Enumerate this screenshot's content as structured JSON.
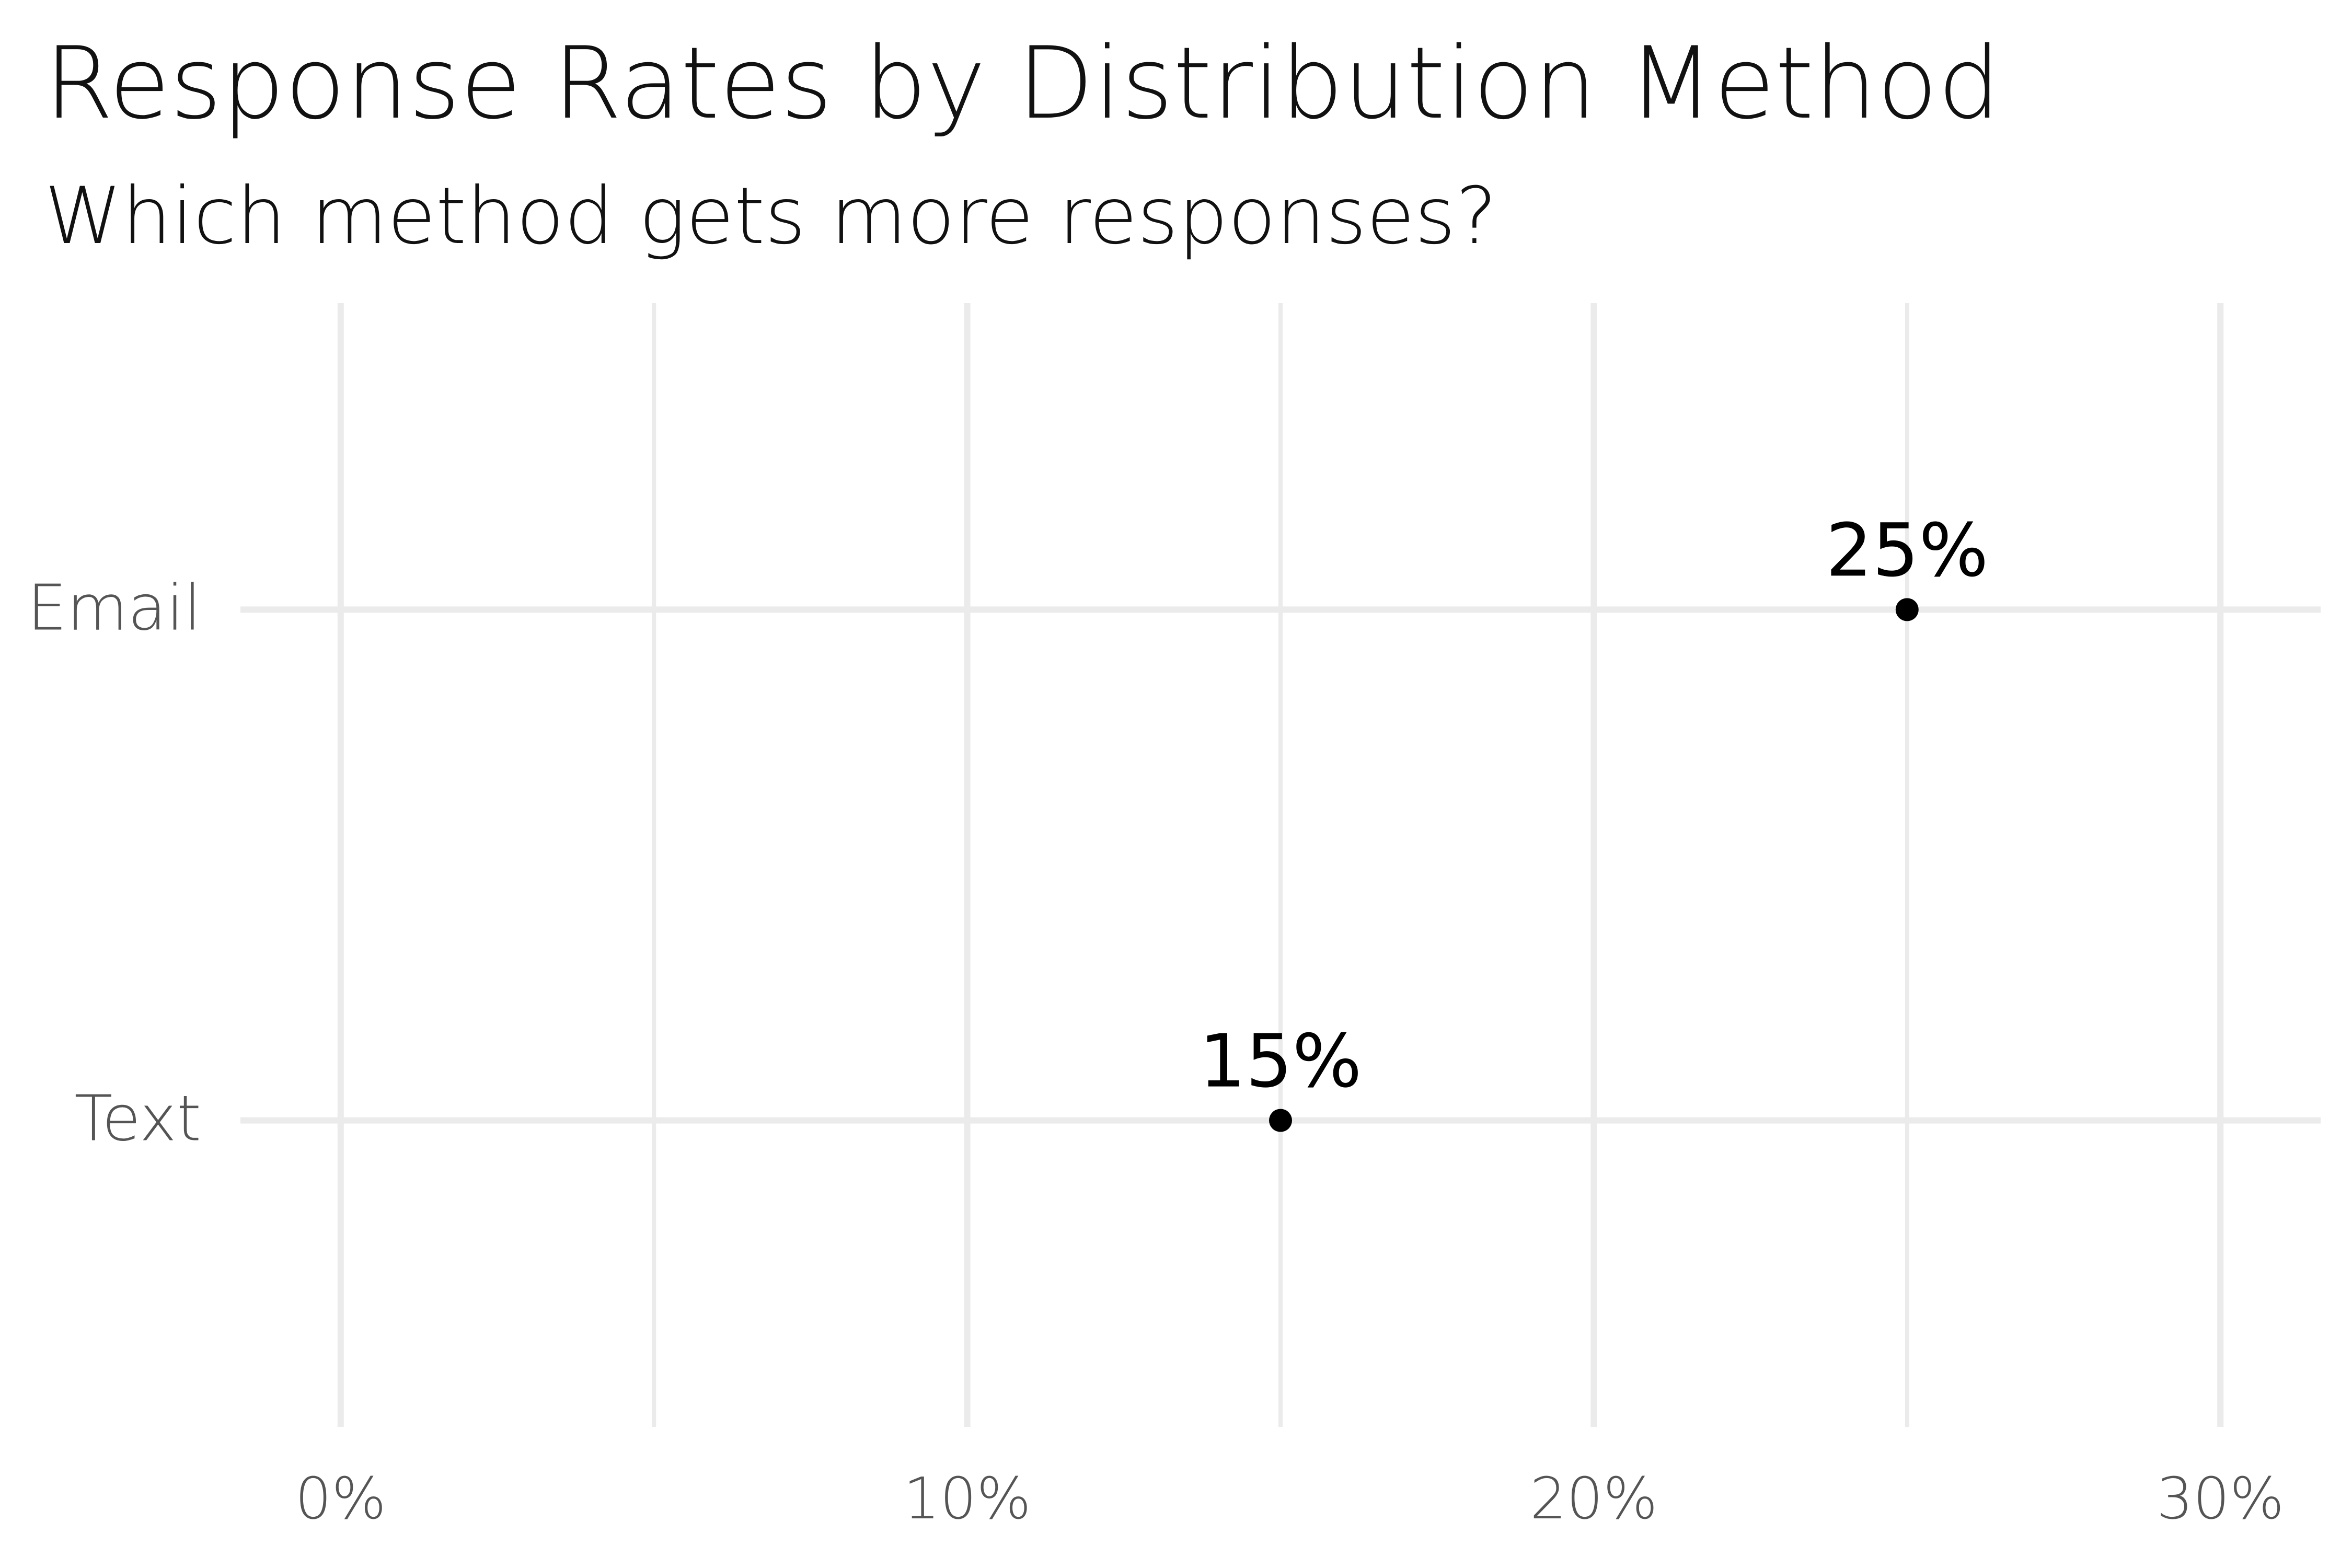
{
  "chart_data": {
    "type": "scatter",
    "title": "Response Rates by Distribution Method",
    "subtitle": "Which method gets more responses?",
    "xlabel": "",
    "ylabel": "",
    "categories": [
      "Email",
      "Text"
    ],
    "values": [
      25,
      15
    ],
    "data_labels": [
      "25%",
      "15%"
    ],
    "x_ticks": [
      0,
      10,
      20,
      30
    ],
    "x_tick_labels": [
      "0%",
      "10%",
      "20%",
      "30%"
    ],
    "xlim": [
      -1.6,
      31.6
    ],
    "grid": true,
    "legend": "none",
    "colors": {
      "point": "#000000",
      "grid": "#ebebeb",
      "text": "#111111",
      "axis_text": "#555555"
    }
  }
}
